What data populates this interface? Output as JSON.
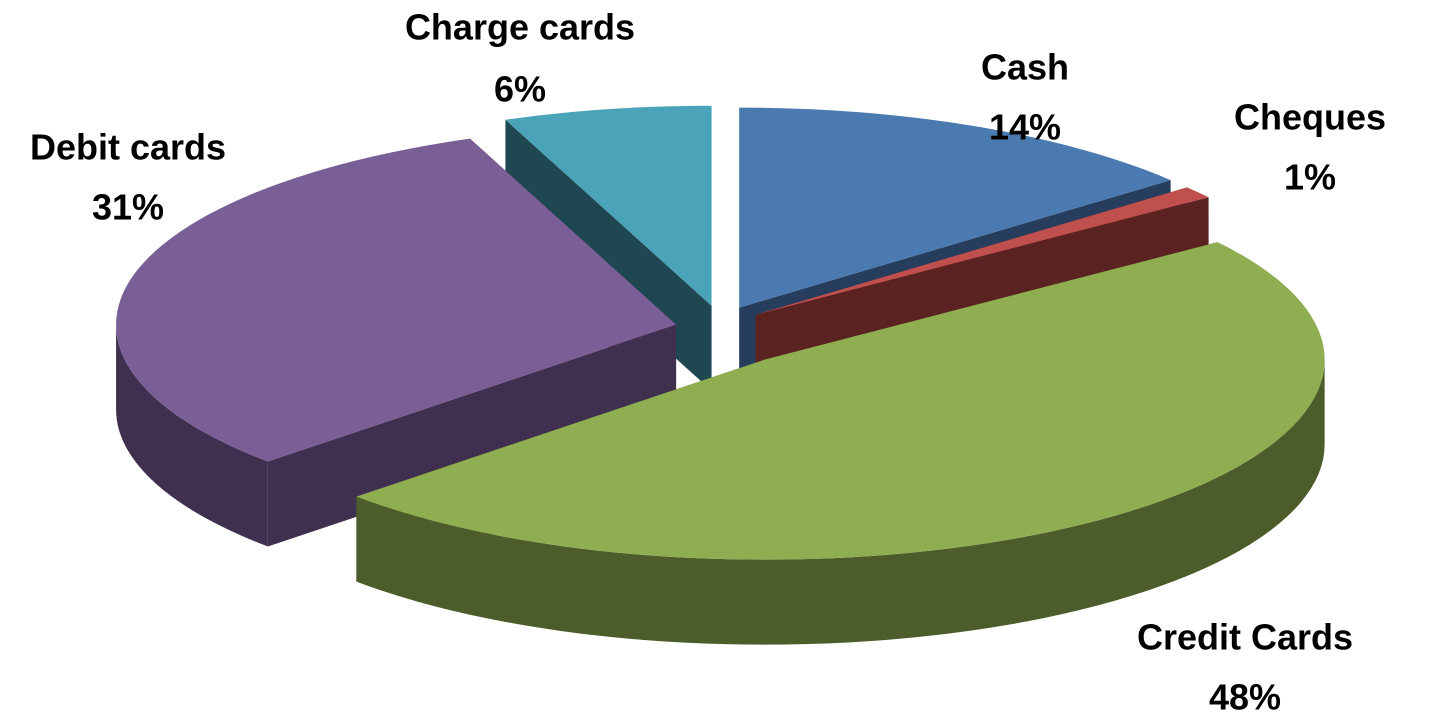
{
  "chart_data": {
    "type": "pie",
    "categories": [
      "Cash",
      "Cheques",
      "Credit Cards",
      "Debit cards",
      "Charge cards"
    ],
    "values": [
      14,
      1,
      48,
      31,
      6
    ],
    "value_labels": [
      "14%",
      "1%",
      "48%",
      "31%",
      "6%"
    ],
    "colors": [
      "#4a7ab0",
      "#c0504d",
      "#8fae52",
      "#7a5f97",
      "#4aa3b8"
    ],
    "side_colors": [
      "#263d5e",
      "#5a2220",
      "#4c5c2a",
      "#40304f",
      "#1f4752"
    ]
  }
}
